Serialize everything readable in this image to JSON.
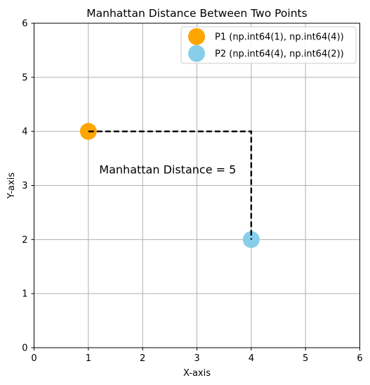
{
  "chart_data": {
    "type": "scatter",
    "title": "Manhattan Distance Between Two Points",
    "xlabel": "X-axis",
    "ylabel": "Y-axis",
    "xlim": [
      0,
      6
    ],
    "ylim": [
      0,
      6
    ],
    "xticks": [
      0,
      1,
      2,
      3,
      4,
      5,
      6
    ],
    "yticks": [
      0,
      1,
      2,
      3,
      4,
      5,
      6
    ],
    "grid": true,
    "legend_position": "top-right",
    "series": [
      {
        "name": "P1 (np.int64(1), np.int64(4))",
        "color": "#ffa500",
        "points": [
          {
            "x": 1,
            "y": 4
          }
        ]
      },
      {
        "name": "P2 (np.int64(4), np.int64(2))",
        "color": "#87ceeb",
        "points": [
          {
            "x": 4,
            "y": 2
          }
        ]
      }
    ],
    "path": {
      "style": "dashed",
      "color": "#000000",
      "points": [
        {
          "x": 1,
          "y": 4
        },
        {
          "x": 4,
          "y": 4
        },
        {
          "x": 4,
          "y": 2
        }
      ]
    },
    "annotations": [
      {
        "text": "Manhattan Distance = 5",
        "x": 1.2,
        "y": 3.3
      }
    ]
  }
}
